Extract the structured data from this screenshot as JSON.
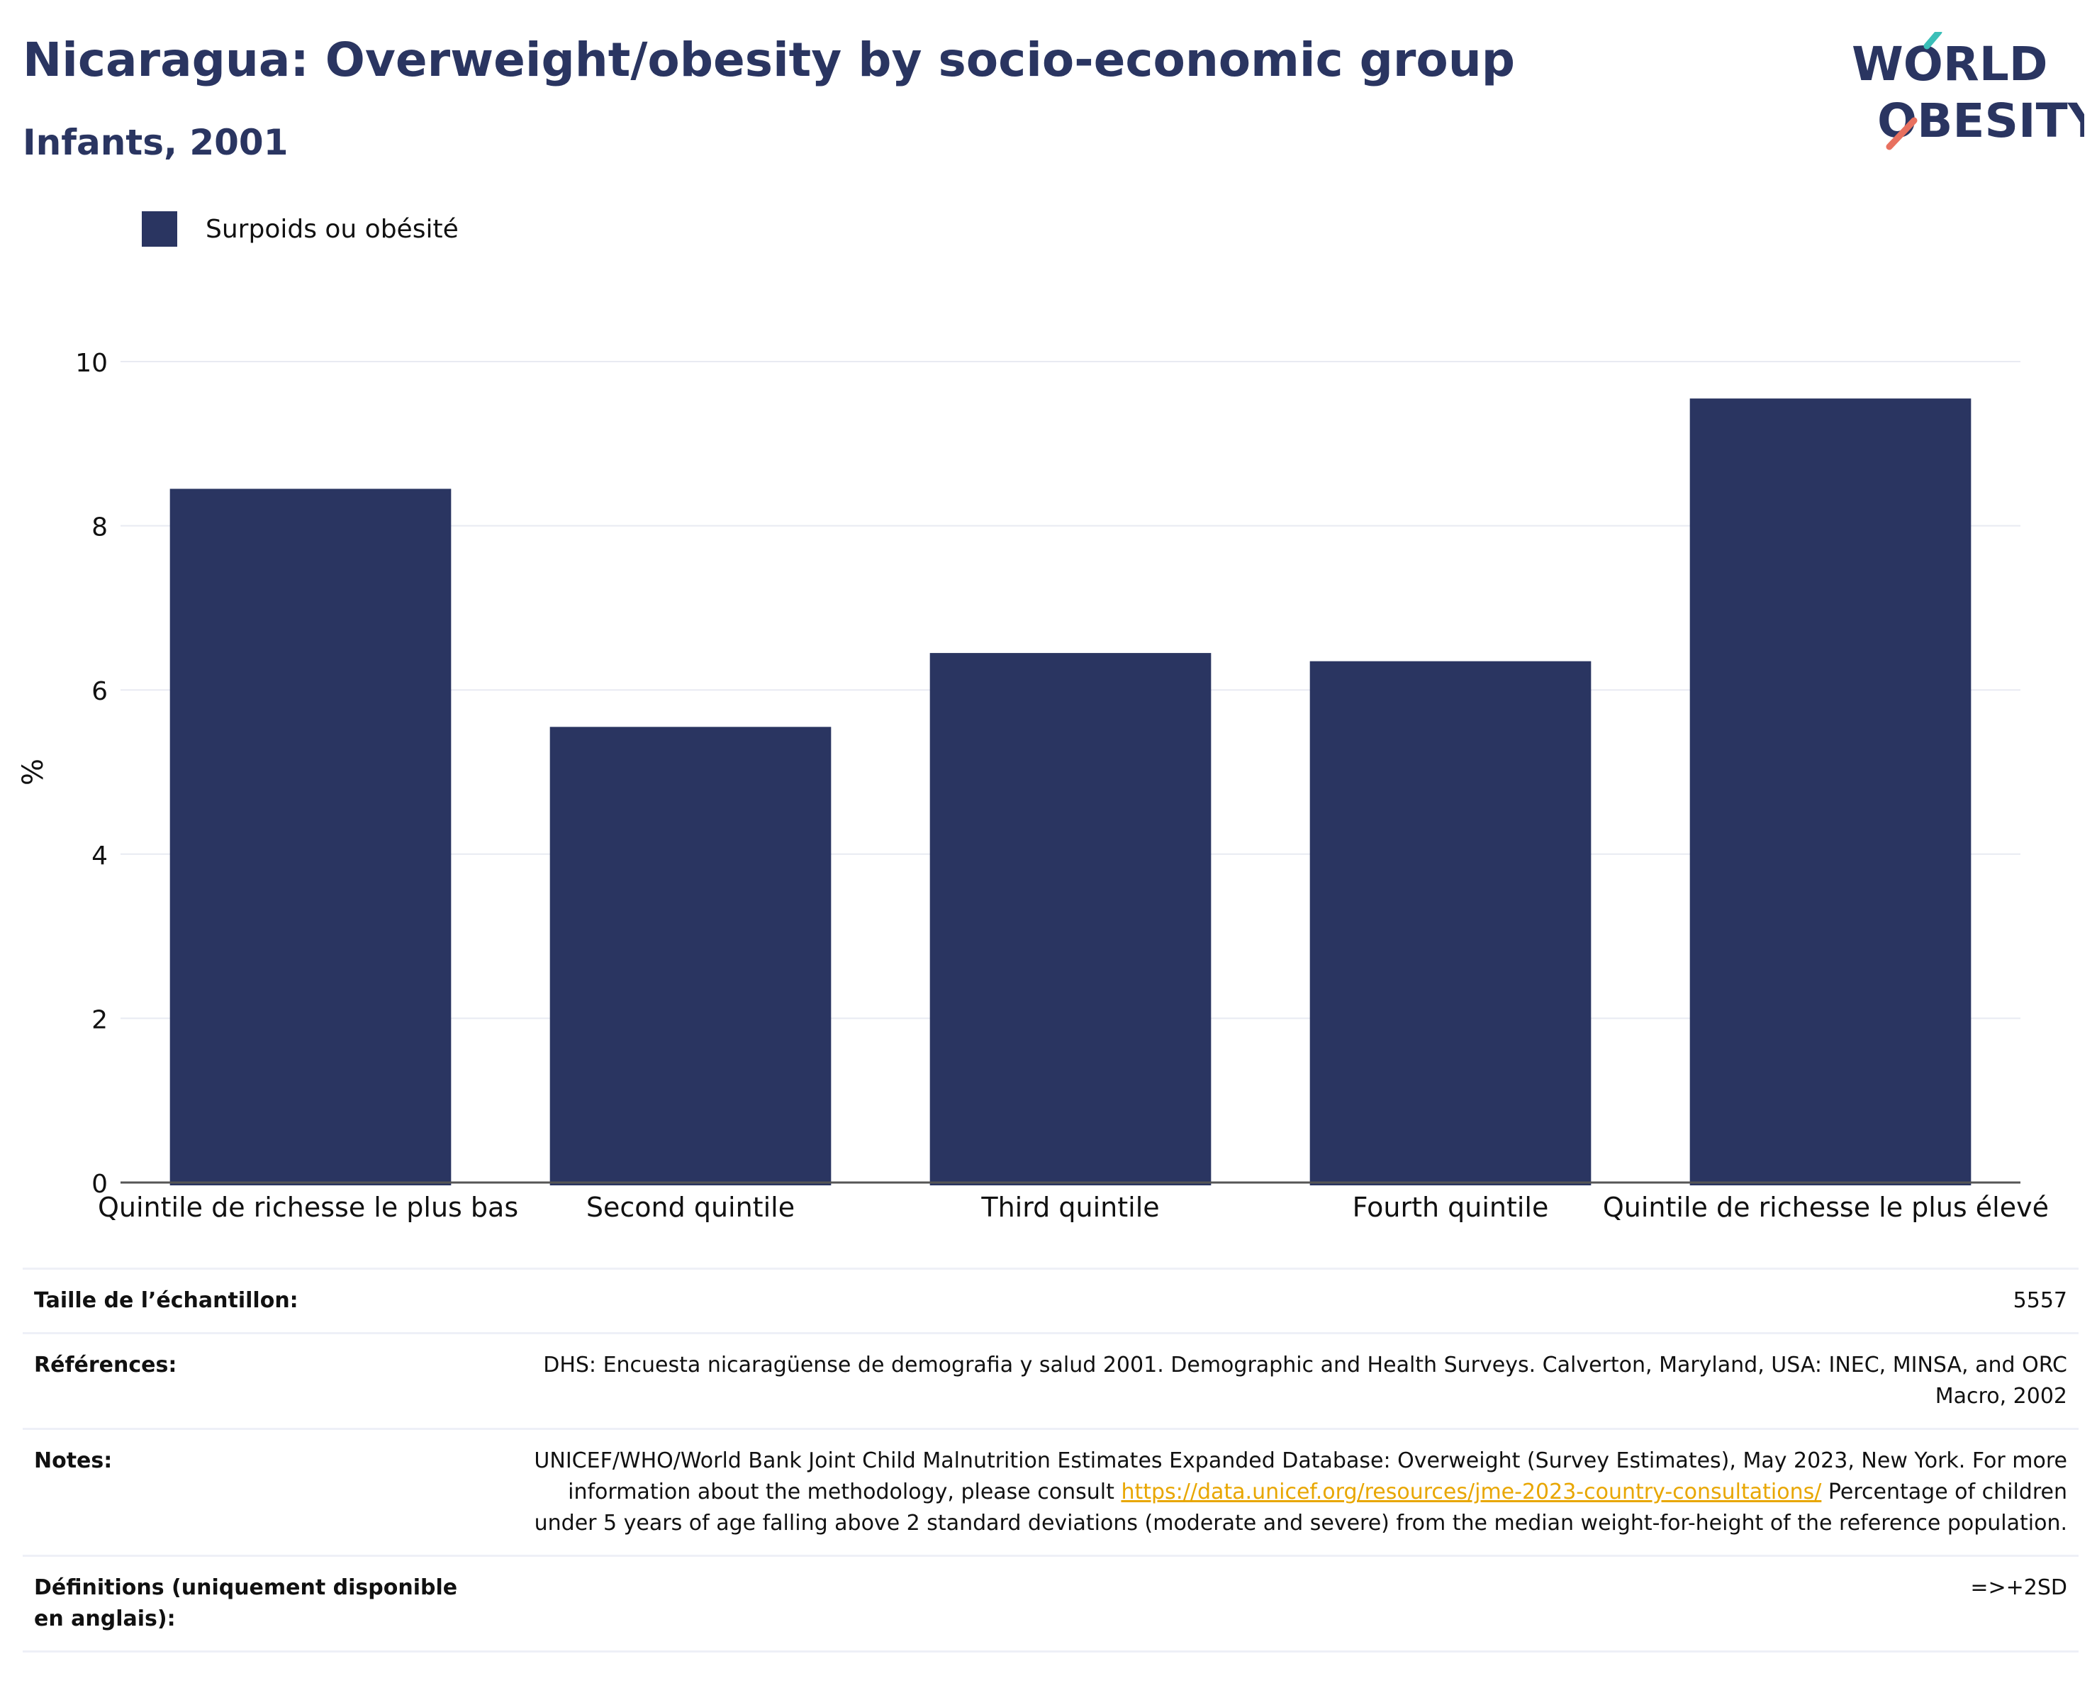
{
  "header": {
    "title": "Nicaragua: Overweight/obesity by socio-economic group",
    "subtitle": "Infants, 2001"
  },
  "logo": {
    "line1": "WORLD",
    "line2": "OBESITY"
  },
  "colors": {
    "bar": "#2a3561",
    "title": "#2a3561",
    "grid": "#e8eaf2",
    "link": "#e8a600",
    "logo_teal": "#3bbfb8",
    "logo_coral": "#e8705f"
  },
  "chart_data": {
    "type": "bar",
    "categories": [
      "Quintile de richesse le plus bas",
      "Second quintile",
      "Third quintile",
      "Fourth quintile",
      "Quintile de richesse le plus élevé"
    ],
    "series": [
      {
        "name": "Surpoids ou obésité",
        "values": [
          8.45,
          5.55,
          6.45,
          6.35,
          9.55
        ]
      }
    ],
    "ylabel": "%",
    "ylim": [
      0,
      10
    ],
    "yticks": [
      0,
      2,
      4,
      6,
      8,
      10
    ],
    "grid": true,
    "legend": "top-left"
  },
  "meta": {
    "rows": [
      {
        "label": "Taille de l’échantillon:",
        "value": "5557"
      },
      {
        "label": "Références:",
        "value": "DHS: Encuesta nicaragüense de demografia y salud 2001. Demographic and Health Surveys. Calverton, Maryland, USA: INEC, MINSA, and ORC Macro, 2002"
      },
      {
        "label": "Notes:",
        "value_pre": "UNICEF/WHO/World Bank Joint Child Malnutrition Estimates Expanded Database: Overweight (Survey Estimates), May 2023, New York. For more information about the methodology, please consult ",
        "link": "https://data.unicef.org/resources/jme-2023-country-consultations/",
        "value_post": " Percentage of children under 5 years of age falling above 2 standard deviations (moderate and severe) from the median weight-for-height of the reference population."
      },
      {
        "label": "Définitions (uniquement disponible en anglais):",
        "value": "=>+2SD"
      }
    ]
  }
}
